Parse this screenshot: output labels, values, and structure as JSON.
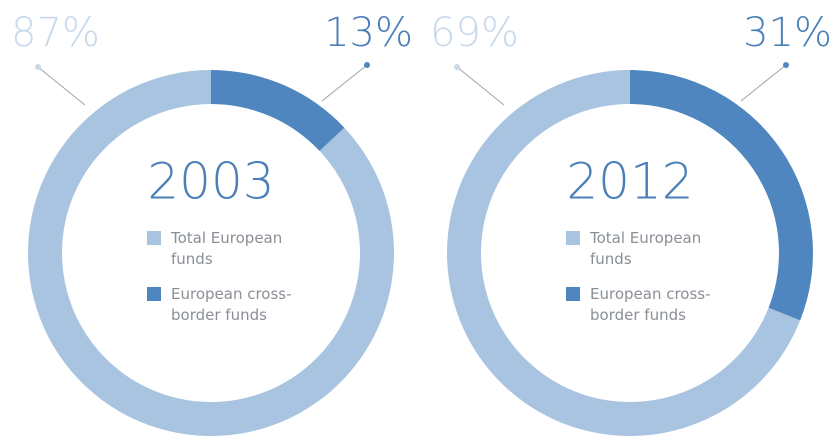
{
  "chart_data": [
    {
      "type": "donut",
      "title": "2003",
      "categories": [
        "Total European funds",
        "European cross-border funds"
      ],
      "values": [
        87,
        13
      ],
      "value_labels": [
        "87%",
        "13%"
      ],
      "colors": [
        "#a9c4e0",
        "#4f86bf"
      ]
    },
    {
      "type": "donut",
      "title": "2012",
      "categories": [
        "Total European funds",
        "European cross-border funds"
      ],
      "values": [
        69,
        31
      ],
      "value_labels": [
        "69%",
        "31%"
      ],
      "colors": [
        "#a9c4e0",
        "#4f86bf"
      ]
    }
  ]
}
